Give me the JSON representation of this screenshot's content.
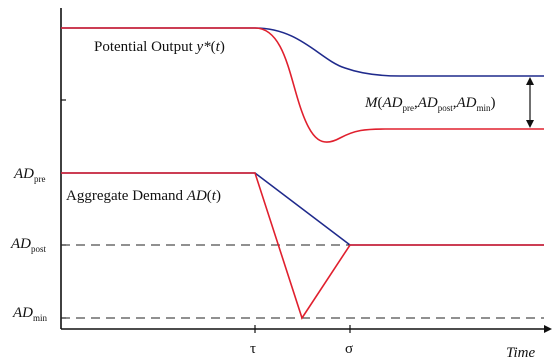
{
  "diagram": {
    "potential_output_label": {
      "text": "Potential Output ",
      "var": "y*",
      "paren_open": "(",
      "arg": "t",
      "paren_close": ")"
    },
    "aggregate_demand_label": {
      "text": "Aggregate Demand ",
      "var": "AD",
      "paren_open": "(",
      "arg": "t",
      "paren_close": ")"
    },
    "gap_label": {
      "fn": "M",
      "open": "(",
      "ad1": "AD",
      "sub1": "pre",
      "comma1": ",",
      "ad2": "AD",
      "sub2": "post",
      "comma2": ",",
      "ad3": "AD",
      "sub3": "min",
      "close": ")"
    },
    "y_axis_labels": {
      "ad_pre": {
        "main": "AD",
        "sub": "pre"
      },
      "ad_post": {
        "main": "AD",
        "sub": "post"
      },
      "ad_min": {
        "main": "AD",
        "sub": "min"
      }
    },
    "x_axis_labels": {
      "tau": "τ",
      "sigma": "σ",
      "time": "Time"
    },
    "colors": {
      "blue": "#1f2a8c",
      "red": "#e0202e",
      "axis": "#111111",
      "dashed": "#222222"
    }
  }
}
